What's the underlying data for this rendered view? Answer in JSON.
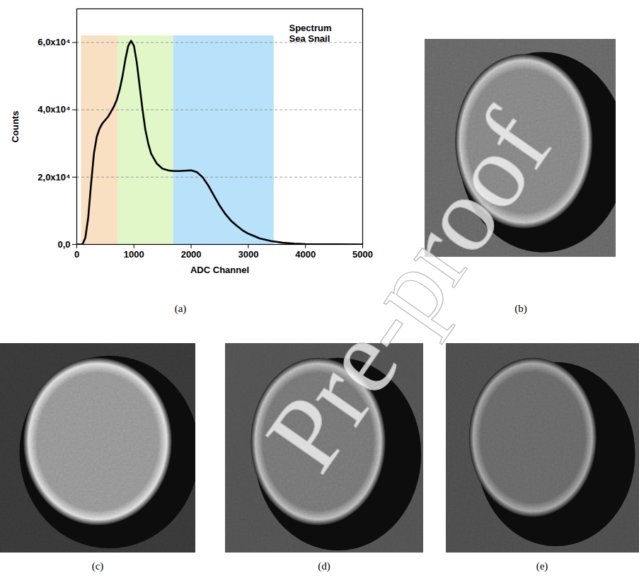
{
  "chart_data": {
    "type": "line",
    "x_label": "ADC Channel",
    "y_label": "Counts",
    "annotation": [
      "Spectrum",
      "Sea Snail"
    ],
    "color": "#000000",
    "x": [
      0,
      100,
      150,
      200,
      250,
      300,
      350,
      400,
      450,
      500,
      550,
      600,
      650,
      700,
      750,
      800,
      850,
      900,
      950,
      1000,
      1050,
      1100,
      1150,
      1200,
      1250,
      1300,
      1400,
      1500,
      1600,
      1700,
      1800,
      1900,
      2000,
      2100,
      2200,
      2300,
      2400,
      2500,
      2600,
      2700,
      2800,
      2900,
      3000,
      3200,
      3400,
      3600,
      3800,
      4000,
      4500,
      5000
    ],
    "values": [
      0,
      0,
      2000,
      8000,
      18000,
      27000,
      32000,
      34500,
      36000,
      37000,
      38000,
      39500,
      41000,
      43000,
      46000,
      50000,
      55000,
      59000,
      60500,
      59000,
      54000,
      47000,
      40000,
      34000,
      30000,
      27000,
      24000,
      22500,
      22000,
      21800,
      21800,
      21900,
      22000,
      21500,
      20000,
      17500,
      14500,
      11500,
      9000,
      7000,
      5500,
      4200,
      3200,
      1800,
      1000,
      500,
      250,
      100,
      20,
      0
    ],
    "bands": [
      {
        "x1": 80,
        "x2": 720,
        "color": "#f9e0c2"
      },
      {
        "x1": 720,
        "x2": 1690,
        "color": "#e1f7c8"
      },
      {
        "x1": 1690,
        "x2": 3450,
        "color": "#b8e2fa"
      }
    ],
    "band_top": 62000,
    "xlim": [
      0,
      5000
    ],
    "xticks": [
      0,
      1000,
      2000,
      3000,
      4000,
      5000
    ],
    "ylim": [
      0,
      70000
    ],
    "yticks": [
      {
        "value": 0,
        "label": "0,0"
      },
      {
        "value": 20000,
        "label": "2,0x10⁴"
      },
      {
        "value": 40000,
        "label": "4,0x10⁴"
      },
      {
        "value": 60000,
        "label": "6,0x10⁴"
      }
    ],
    "grid": true
  },
  "panels": [
    "(a)",
    "(b)",
    "(c)",
    "(d)",
    "(e)"
  ],
  "watermark": "Pre-proof"
}
